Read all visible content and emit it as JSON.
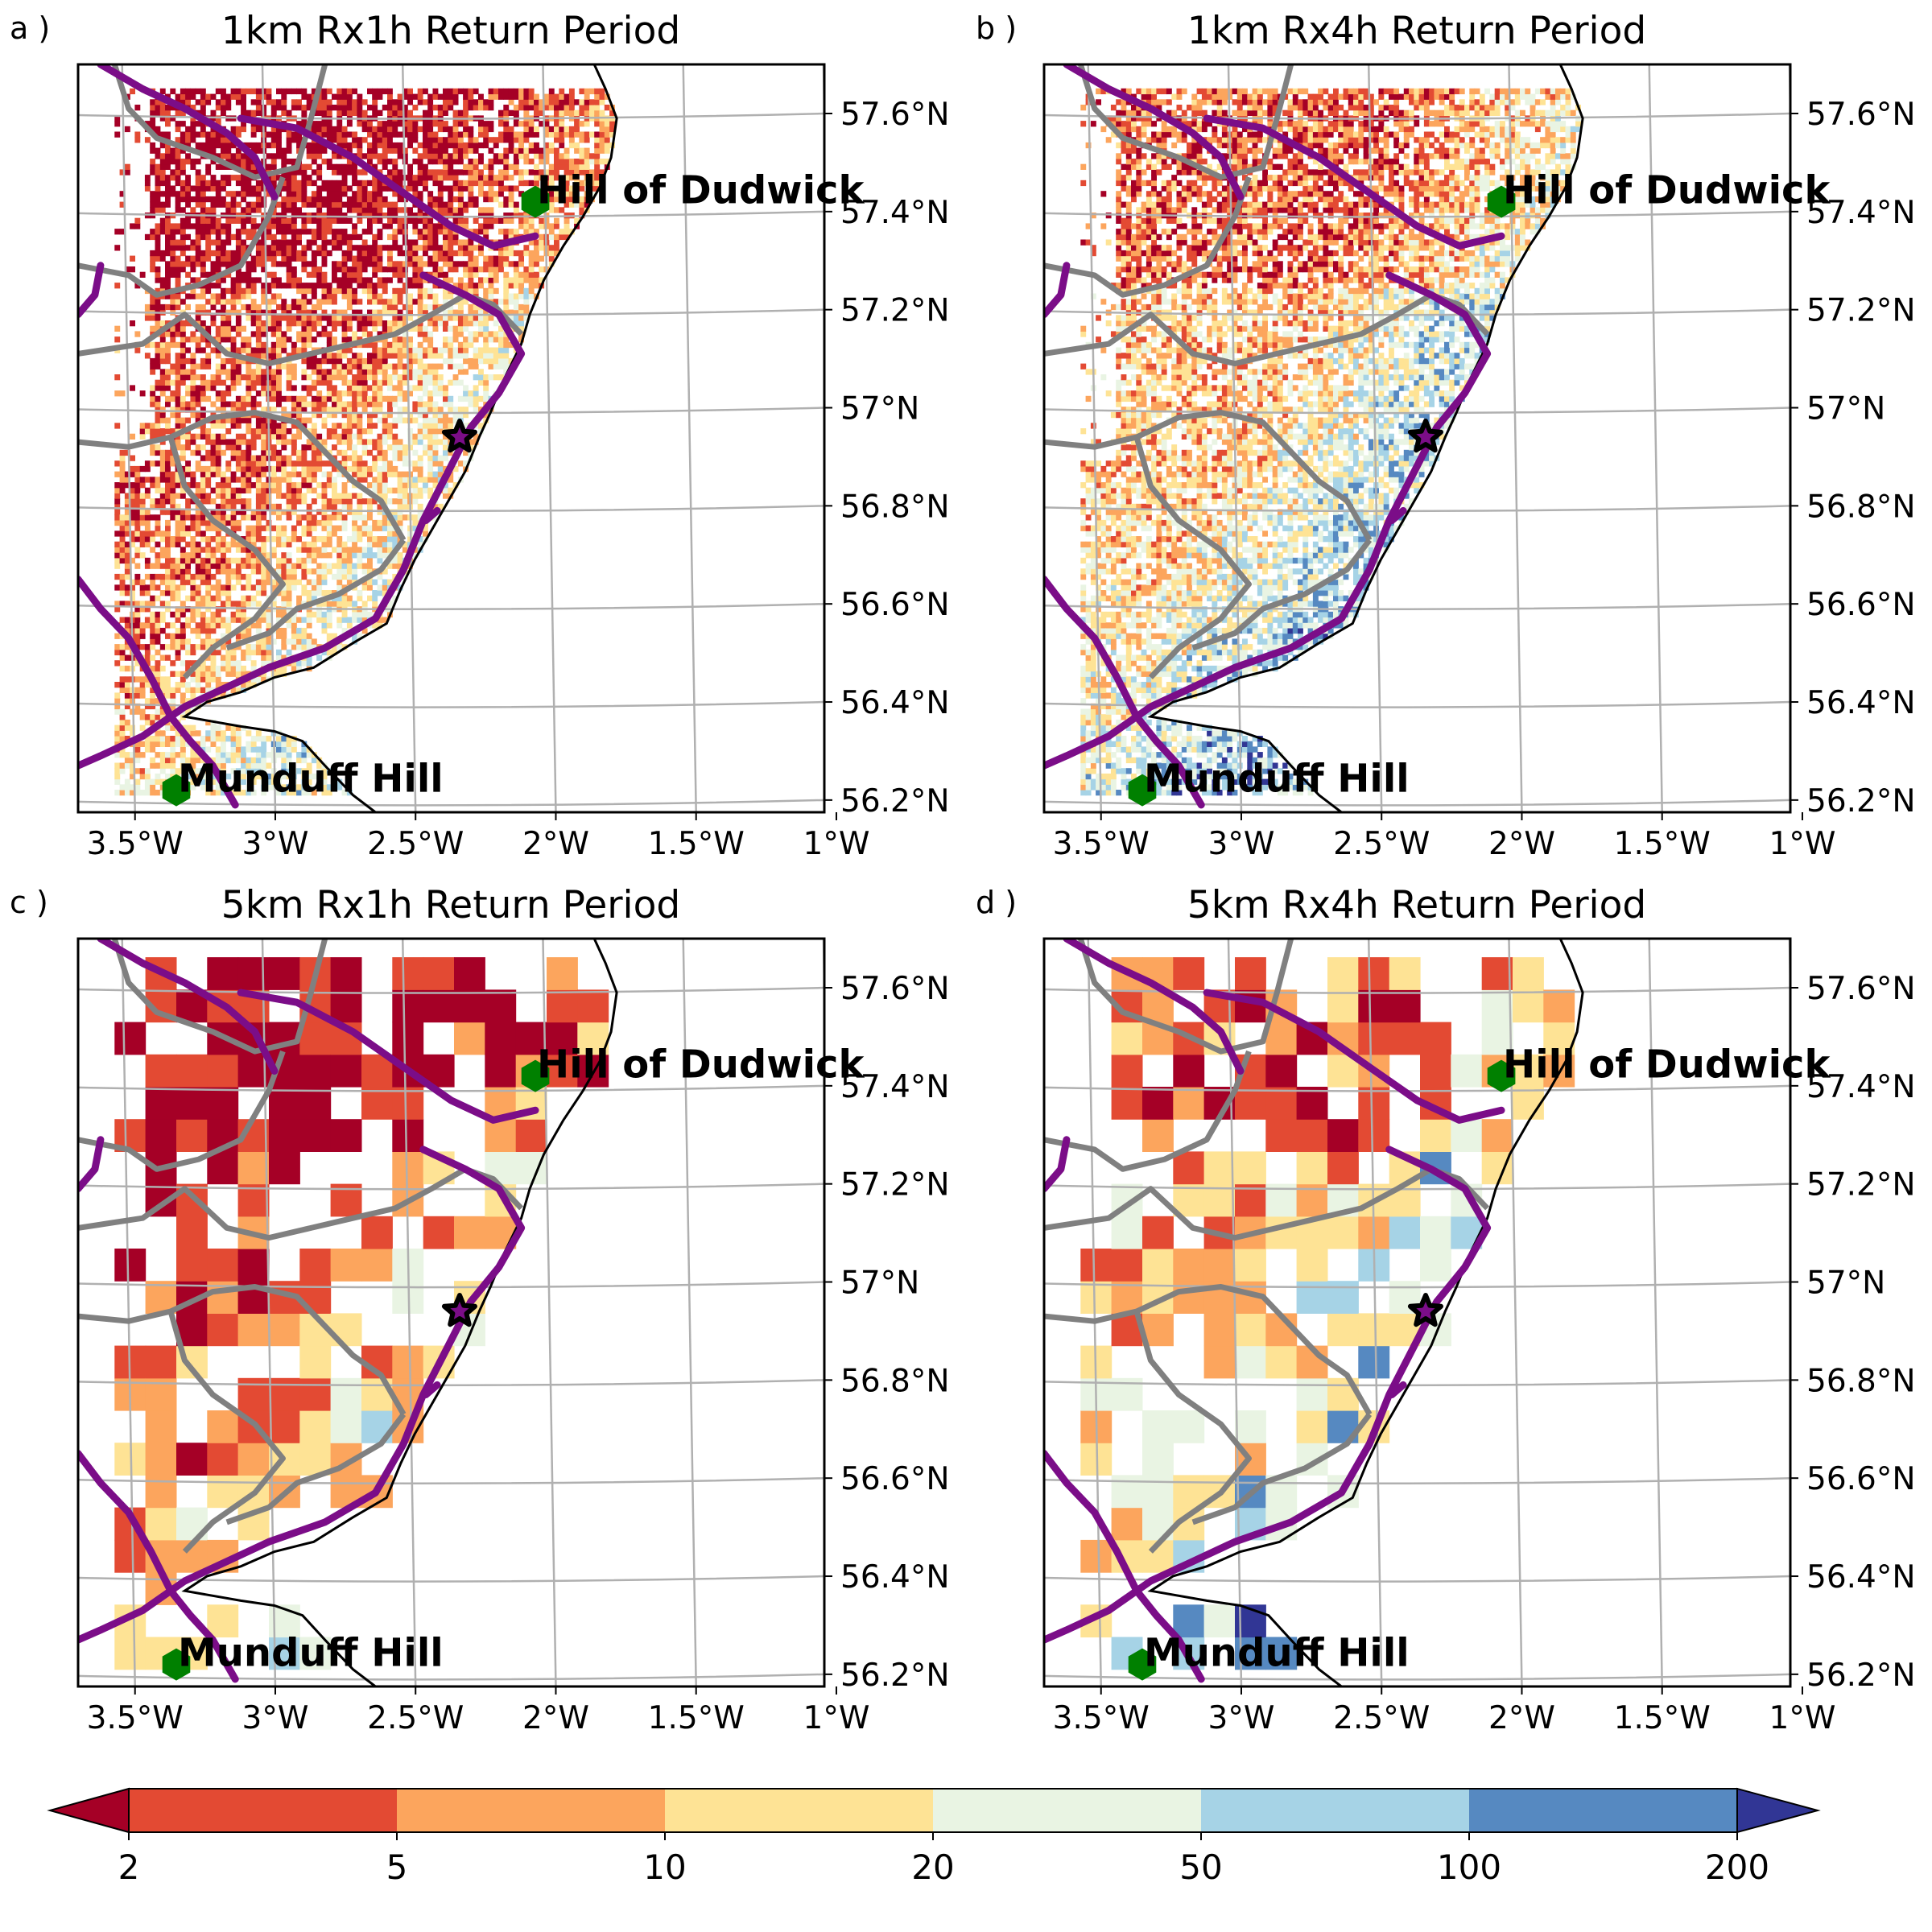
{
  "panels": [
    {
      "id": "a",
      "label": "a )",
      "title": "1km Rx1h Return Period",
      "resolution": "1km",
      "duration": "Rx1h"
    },
    {
      "id": "b",
      "label": "b )",
      "title": "1km Rx4h Return Period",
      "resolution": "1km",
      "duration": "Rx4h"
    },
    {
      "id": "c",
      "label": "c )",
      "title": "5km Rx1h Return Period",
      "resolution": "5km",
      "duration": "Rx1h"
    },
    {
      "id": "d",
      "label": "d )",
      "title": "5km Rx4h Return Period",
      "resolution": "5km",
      "duration": "Rx4h"
    }
  ],
  "lon_ticks": [
    "3.5°W",
    "3°W",
    "2.5°W",
    "2°W",
    "1.5°W",
    "1°W"
  ],
  "lat_ticks": [
    "57.6°N",
    "57.4°N",
    "57.2°N",
    "57°N",
    "56.8°N",
    "56.6°N",
    "56.4°N",
    "56.2°N"
  ],
  "sites": [
    {
      "name": "Hill of Dudwick",
      "lon": -2.05,
      "lat": 57.43,
      "marker": "green-hexagon",
      "color": "#008000"
    },
    {
      "name": "Munduff Hill",
      "lon": -3.33,
      "lat": 56.23,
      "marker": "green-hexagon",
      "color": "#008000"
    }
  ],
  "event_marker": {
    "lon": -2.32,
    "lat": 56.95,
    "symbol": "star",
    "color": "#000000"
  },
  "colorbar": {
    "ticks": [
      "2",
      "5",
      "10",
      "20",
      "50",
      "100",
      "200"
    ],
    "colors": [
      "#a50026",
      "#e34a33",
      "#fca55d",
      "#fee395",
      "#e9f4e3",
      "#a6d3e6",
      "#5689c1",
      "#313695"
    ],
    "extend": "both"
  },
  "colors": {
    "coast": "#000000",
    "boundary": "#808080",
    "river": "#7b0d88",
    "grid": "#b0b0b0"
  }
}
